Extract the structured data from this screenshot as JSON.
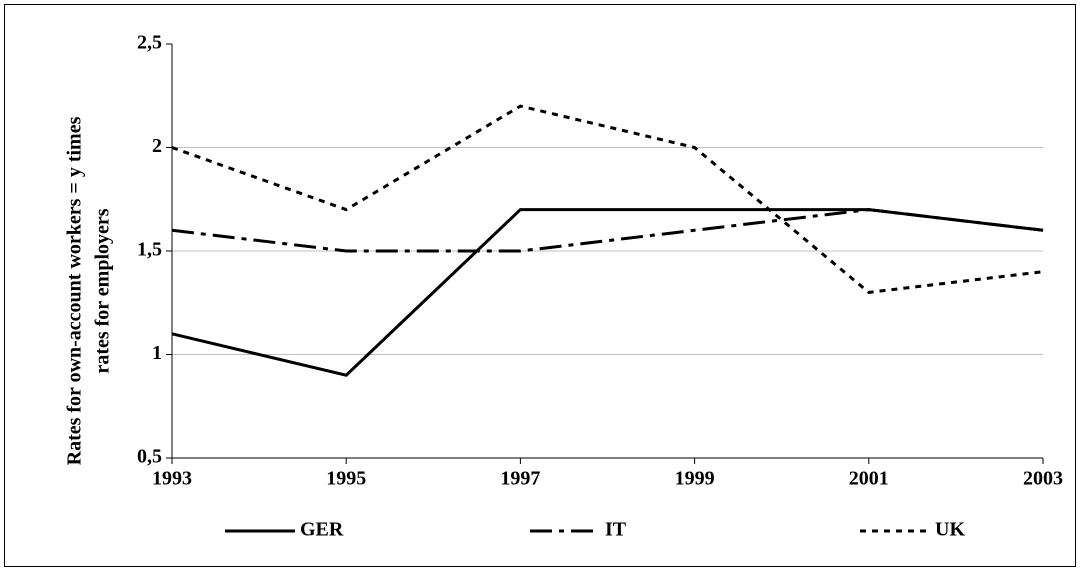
{
  "chart_data": {
    "type": "line",
    "ylabel": [
      "Rates for own-account workers = y times",
      "rates for employers"
    ],
    "x": [
      1993,
      1995,
      1997,
      1999,
      2001,
      2003
    ],
    "xlim": [
      1993,
      2003
    ],
    "xticks": [
      1993,
      1995,
      1997,
      1999,
      2001,
      2003
    ],
    "ylim": [
      0.5,
      2.5
    ],
    "yticks": [
      {
        "value": 0.5,
        "label": "0,5"
      },
      1,
      {
        "value": 1.5,
        "label": "1,5"
      },
      2,
      {
        "value": 2.5,
        "label": "2,5"
      }
    ],
    "grid": true,
    "legend": "bottom",
    "series": [
      {
        "name": "GER",
        "color": "#000000",
        "dash": "solid",
        "values": [
          1.1,
          0.9,
          1.7,
          1.7,
          1.7,
          1.6
        ]
      },
      {
        "name": "IT",
        "color": "#000000",
        "dash": "dashdot",
        "values": [
          1.6,
          1.5,
          1.5,
          1.6,
          1.7,
          1.6
        ]
      },
      {
        "name": "UK",
        "color": "#000000",
        "dash": "dotted",
        "values": [
          2.0,
          1.7,
          2.2,
          2.0,
          1.3,
          1.4
        ]
      }
    ]
  }
}
